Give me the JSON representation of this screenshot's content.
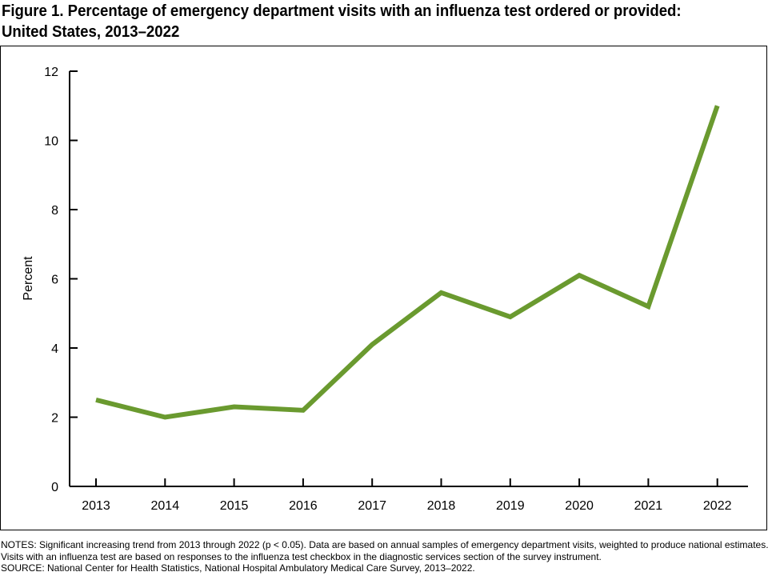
{
  "title": "Figure 1. Percentage of emergency department visits with an influenza test ordered or provided: United States, 2013–2022",
  "notes": [
    "NOTES: Significant increasing trend from 2013 through 2022 (p < 0.05). Data are based on annual samples of emergency department visits, weighted to produce national estimates. Visits with an influenza test are based on responses to the influenza test checkbox in the diagnostic services section of the survey instrument.",
    "SOURCE: National Center for Health Statistics, National Hospital Ambulatory Medical Care Survey, 2013–2022."
  ],
  "chart_data": {
    "type": "line",
    "title": "Figure 1. Percentage of emergency department visits with an influenza test ordered or provided: United States, 2013–2022",
    "xlabel": "",
    "ylabel": "Percent",
    "ylim": [
      0,
      12
    ],
    "yticks": [
      0,
      2,
      4,
      6,
      8,
      10,
      12
    ],
    "categories": [
      "2013",
      "2014",
      "2015",
      "2016",
      "2017",
      "2018",
      "2019",
      "2020",
      "2021",
      "2022"
    ],
    "series": [
      {
        "name": "Influenza test",
        "color": "#6a9a2f",
        "values": [
          2.5,
          2.0,
          2.3,
          2.2,
          4.1,
          5.6,
          4.9,
          6.1,
          5.2,
          11.0
        ]
      }
    ],
    "grid": false
  }
}
